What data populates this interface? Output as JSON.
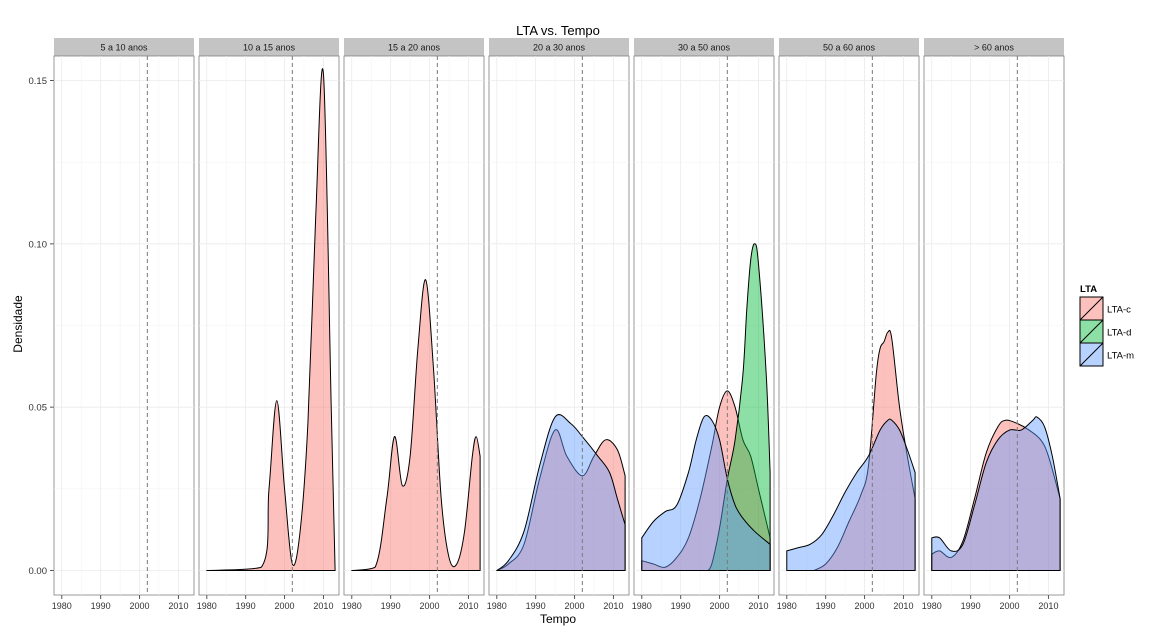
{
  "chart_data": {
    "type": "area",
    "title": "LTA vs. Tempo",
    "xlabel": "Tempo",
    "ylabel": "Densidade",
    "xlim": [
      1978,
      2014
    ],
    "ylim": [
      -0.0075,
      0.1575
    ],
    "x_ticks": [
      1980,
      1990,
      2000,
      2010
    ],
    "y_ticks": [
      0.0,
      0.05,
      0.1,
      0.15
    ],
    "y_tick_labels": [
      "0.00",
      "0.05",
      "0.10",
      "0.15"
    ],
    "vline_x": 2002,
    "grid": true,
    "legend": {
      "title": "LTA",
      "position": "right",
      "entries": [
        {
          "key": "LTA-c",
          "label": "LTA-c",
          "color": "#F8766D"
        },
        {
          "key": "LTA-d",
          "label": "LTA-d",
          "color": "#00BA38"
        },
        {
          "key": "LTA-m",
          "label": "LTA-m",
          "color": "#619CFF"
        }
      ]
    },
    "facets": [
      {
        "label": "5 a 10 anos",
        "series": []
      },
      {
        "label": "10 a 15 anos",
        "series": [
          {
            "name": "LTA-c",
            "x": [
              1980,
              1994,
              1996,
              1998,
              2000,
              2002,
              2004,
              2006,
              2008,
              2010,
              2012,
              2013
            ],
            "y": [
              0,
              0.001,
              0.025,
              0.052,
              0.025,
              0.002,
              0.012,
              0.045,
              0.108,
              0.152,
              0.05,
              0
            ]
          }
        ]
      },
      {
        "label": "15 a 20 anos",
        "series": [
          {
            "name": "LTA-c",
            "x": [
              1980,
              1986,
              1989,
              1991,
              1993,
              1995,
              1997,
              1999,
              2001,
              2003,
              2005,
              2007,
              2009,
              2011,
              2012,
              2013
            ],
            "y": [
              0,
              0.001,
              0.022,
              0.041,
              0.026,
              0.035,
              0.068,
              0.089,
              0.062,
              0.022,
              0.004,
              0.002,
              0.012,
              0.035,
              0.041,
              0.035
            ]
          }
        ]
      },
      {
        "label": "20 a 30 anos",
        "series": [
          {
            "name": "LTA-c",
            "x": [
              1980,
              1983,
              1987,
              1991,
              1995,
              1998,
              2002,
              2005,
              2008,
              2011,
              2013
            ],
            "y": [
              0,
              0.002,
              0.008,
              0.028,
              0.043,
              0.035,
              0.029,
              0.035,
              0.04,
              0.037,
              0.029
            ]
          },
          {
            "name": "LTA-m",
            "x": [
              1980,
              1983,
              1987,
              1991,
              1995,
              1999,
              2002,
              2006,
              2009,
              2011,
              2013
            ],
            "y": [
              0,
              0.003,
              0.012,
              0.032,
              0.047,
              0.045,
              0.041,
              0.035,
              0.03,
              0.022,
              0.014
            ]
          }
        ]
      },
      {
        "label": "30 a 50 anos",
        "series": [
          {
            "name": "LTA-c",
            "x": [
              1980,
              1983,
              1986,
              1989,
              1992,
              1995,
              1998,
              2000,
              2002,
              2004,
              2006,
              2008,
              2010,
              2013
            ],
            "y": [
              0.003,
              0.002,
              0.001,
              0.004,
              0.01,
              0.022,
              0.038,
              0.05,
              0.055,
              0.05,
              0.04,
              0.035,
              0.025,
              0.01
            ]
          },
          {
            "name": "LTA-d",
            "x": [
              1997,
              1998,
              2000,
              2002,
              2004,
              2006,
              2007,
              2008,
              2009,
              2010,
              2012,
              2013
            ],
            "y": [
              0,
              0.002,
              0.013,
              0.028,
              0.04,
              0.06,
              0.08,
              0.095,
              0.1,
              0.094,
              0.06,
              0.03
            ]
          },
          {
            "name": "LTA-m",
            "x": [
              1980,
              1983,
              1986,
              1989,
              1992,
              1994,
              1996,
              1998,
              2000,
              2002,
              2004,
              2006,
              2009,
              2013
            ],
            "y": [
              0.01,
              0.015,
              0.018,
              0.02,
              0.03,
              0.04,
              0.047,
              0.046,
              0.04,
              0.028,
              0.02,
              0.016,
              0.012,
              0.008
            ]
          }
        ]
      },
      {
        "label": "50 a 60 anos",
        "series": [
          {
            "name": "LTA-c",
            "x": [
              1987,
              1990,
              1993,
              1996,
              1999,
              2001,
              2003,
              2004,
              2005,
              2006,
              2007,
              2009,
              2011,
              2013
            ],
            "y": [
              0,
              0.002,
              0.007,
              0.015,
              0.023,
              0.032,
              0.06,
              0.068,
              0.07,
              0.073,
              0.071,
              0.05,
              0.035,
              0.022
            ]
          },
          {
            "name": "LTA-m",
            "x": [
              1980,
              1983,
              1986,
              1989,
              1992,
              1995,
              1998,
              2001,
              2004,
              2006,
              2007,
              2009,
              2011,
              2013
            ],
            "y": [
              0.006,
              0.007,
              0.008,
              0.011,
              0.017,
              0.024,
              0.03,
              0.035,
              0.043,
              0.046,
              0.046,
              0.043,
              0.037,
              0.03
            ]
          }
        ]
      },
      {
        "label": "> 60 anos",
        "series": [
          {
            "name": "LTA-c",
            "x": [
              1980,
              1982,
              1985,
              1988,
              1991,
              1994,
              1997,
              1999,
              2002,
              2005,
              2008,
              2010,
              2013
            ],
            "y": [
              0.005,
              0.006,
              0.004,
              0.009,
              0.022,
              0.036,
              0.044,
              0.046,
              0.045,
              0.043,
              0.04,
              0.035,
              0.022
            ]
          },
          {
            "name": "LTA-m",
            "x": [
              1980,
              1982,
              1985,
              1988,
              1991,
              1994,
              1997,
              2000,
              2003,
              2006,
              2007,
              2009,
              2011,
              2013
            ],
            "y": [
              0.01,
              0.01,
              0.006,
              0.008,
              0.02,
              0.033,
              0.04,
              0.043,
              0.043,
              0.046,
              0.047,
              0.044,
              0.035,
              0.022
            ]
          }
        ]
      }
    ]
  }
}
